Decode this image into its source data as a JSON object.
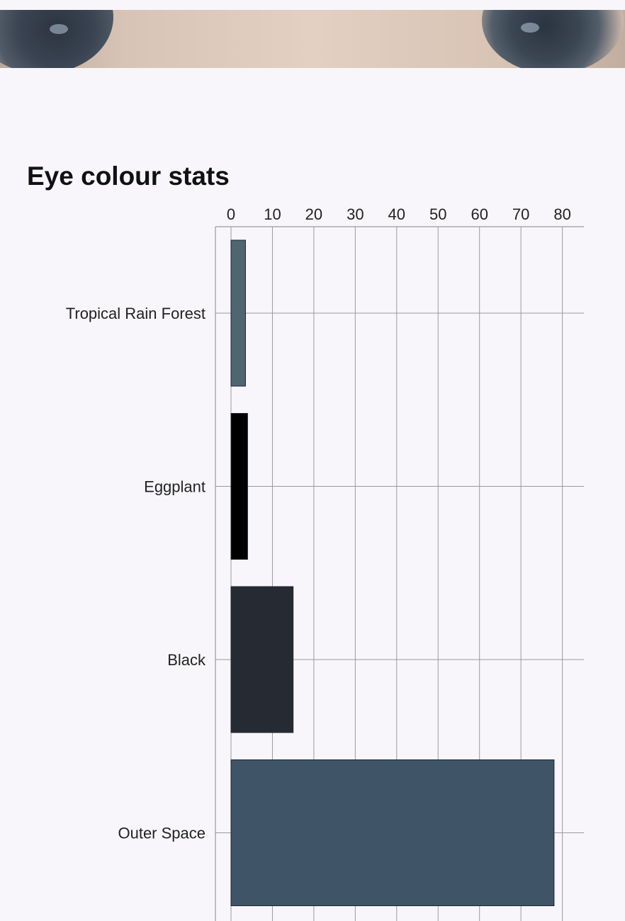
{
  "page": {
    "title": "Eye colour stats"
  },
  "chart_data": {
    "type": "bar",
    "orientation": "horizontal",
    "title": "Eye colour stats",
    "xlabel": "",
    "ylabel": "",
    "categories": [
      "Tropical Rain Forest",
      "Eggplant",
      "Black",
      "Outer Space"
    ],
    "values": [
      3.5,
      4,
      15,
      78
    ],
    "colors": [
      "#4f6570",
      "#000000",
      "#262a33",
      "#3f5466"
    ],
    "xlim": [
      0,
      85
    ],
    "xticks": [
      "0",
      "10",
      "20",
      "30",
      "40",
      "50",
      "60",
      "70",
      "80"
    ],
    "grid": true,
    "axis_position": "top"
  }
}
